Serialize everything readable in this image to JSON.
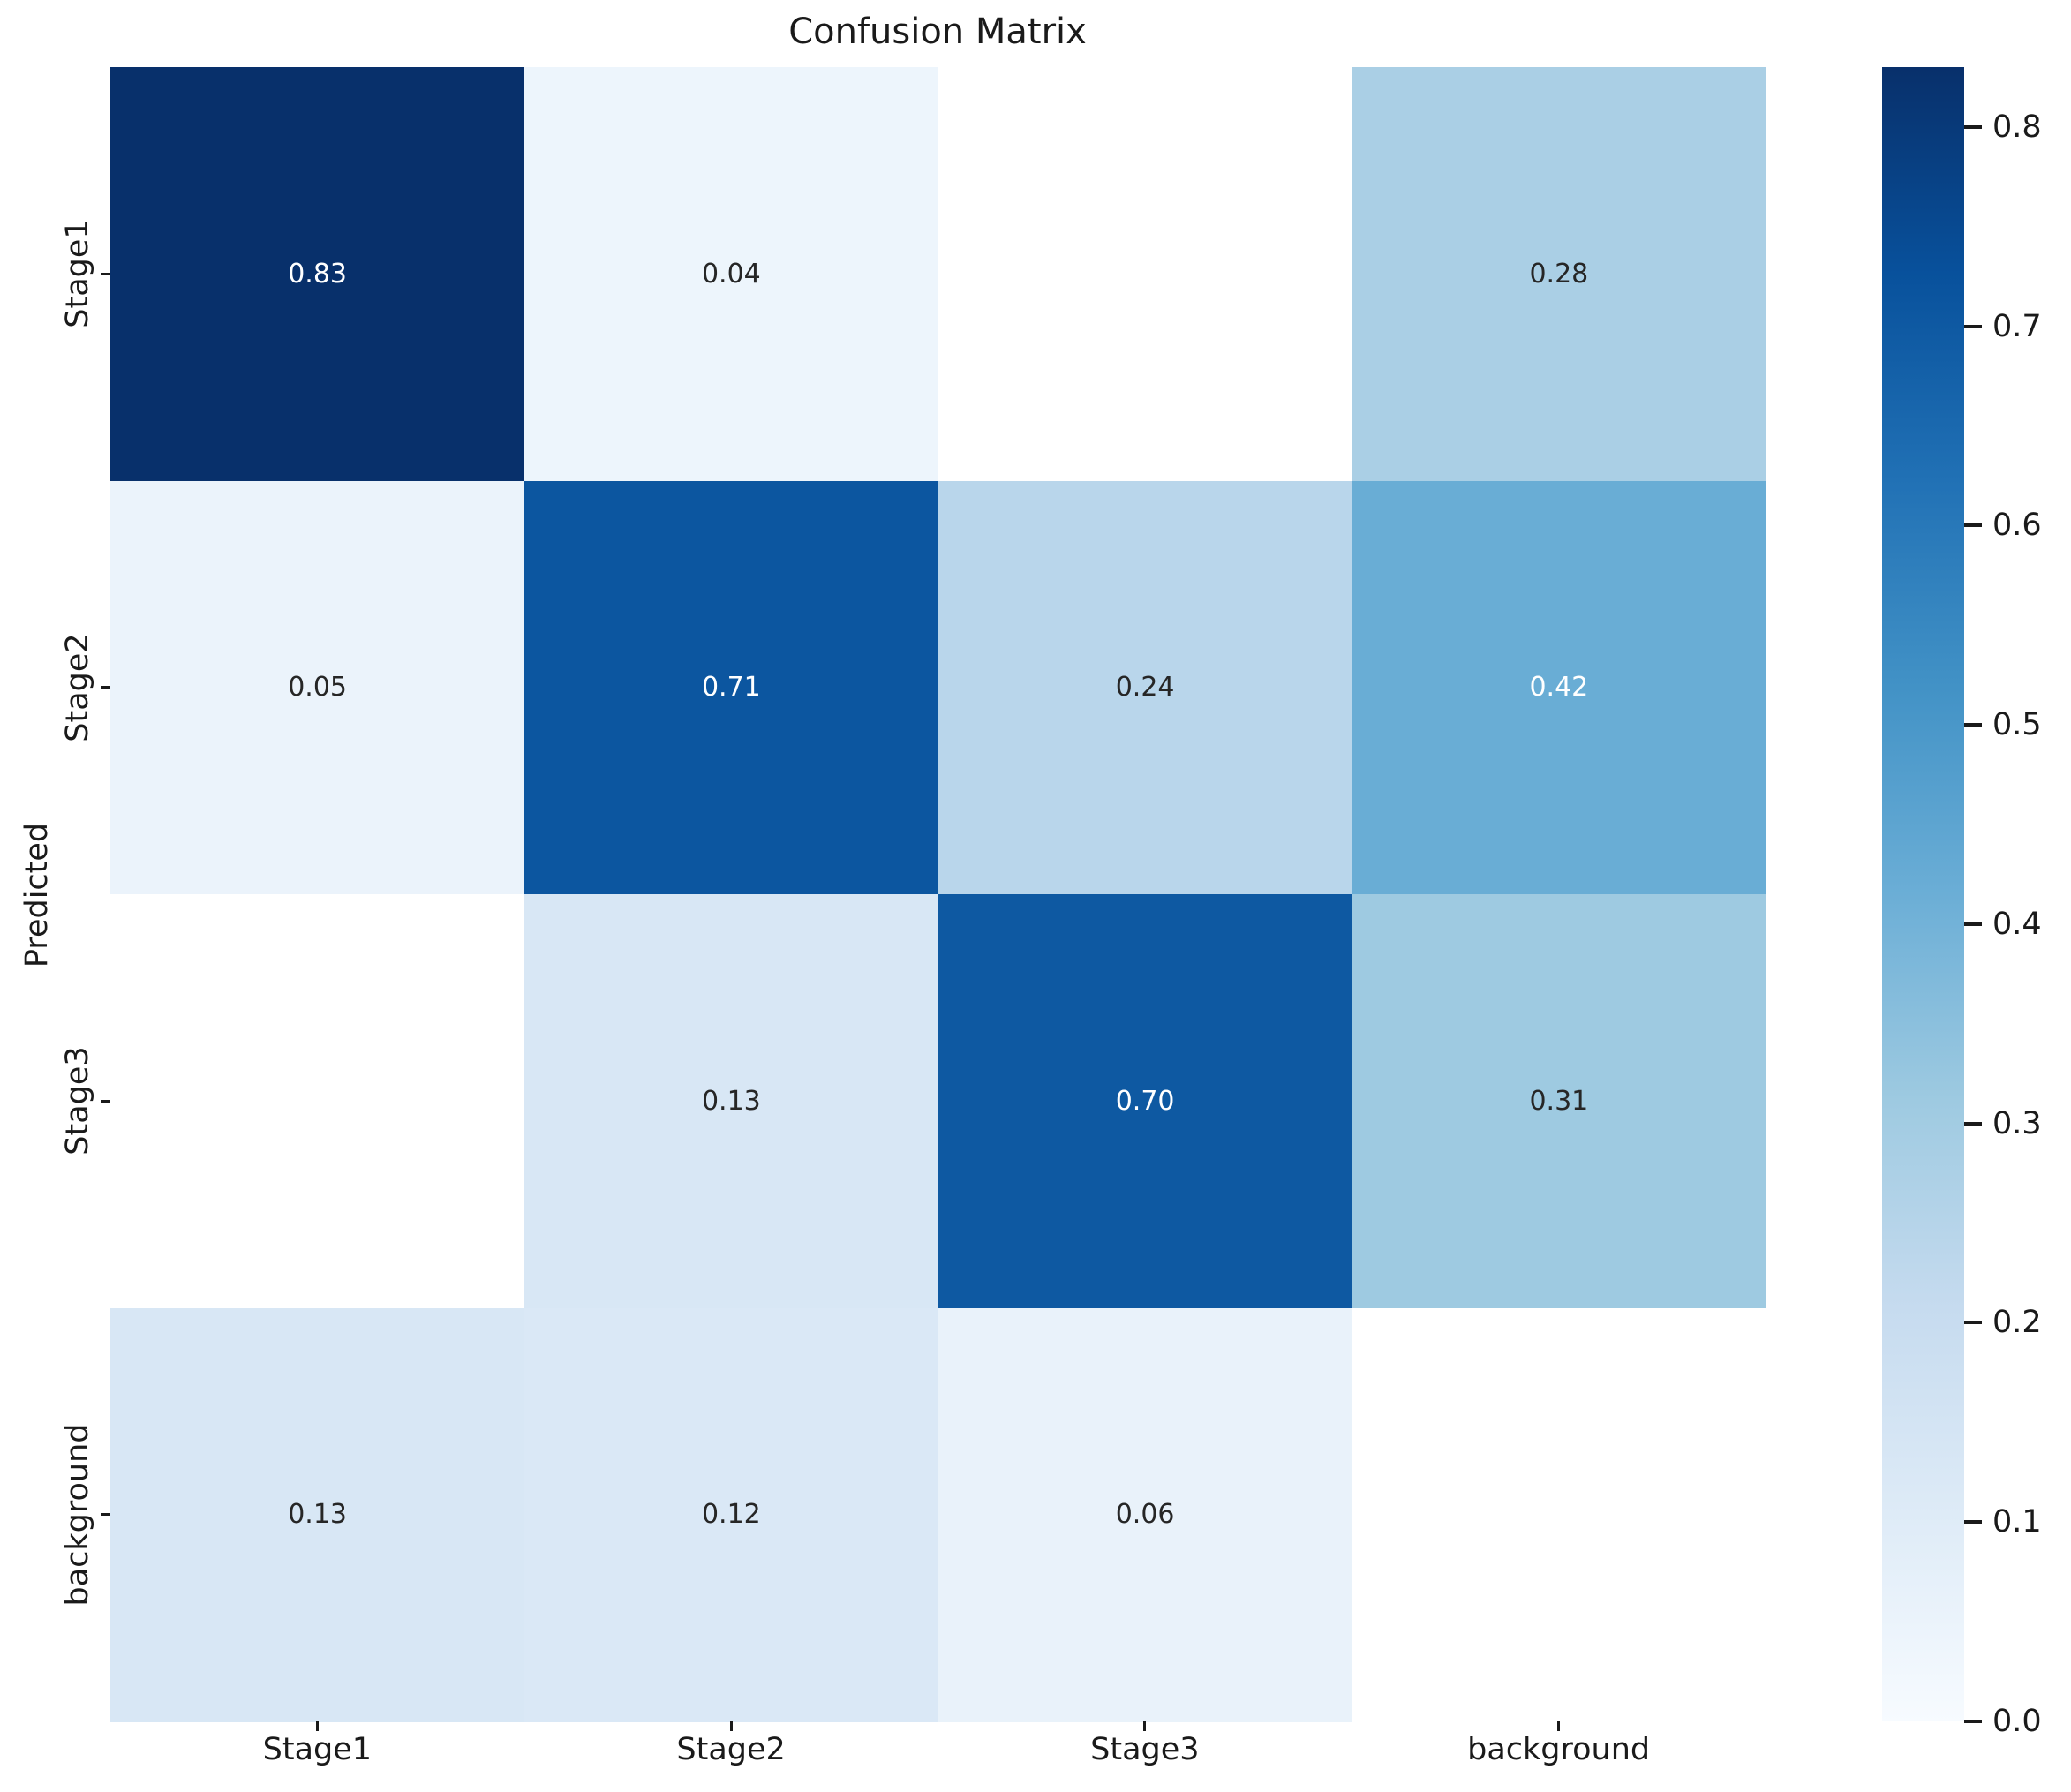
{
  "figure": {
    "background_color": "#ffffff"
  },
  "chart_data": {
    "type": "heatmap",
    "title": "Confusion Matrix",
    "xlabel": "",
    "ylabel": "Predicted",
    "x_categories": [
      "Stage1",
      "Stage2",
      "Stage3",
      "background"
    ],
    "y_categories": [
      "Stage1",
      "Stage2",
      "Stage3",
      "background"
    ],
    "matrix": [
      [
        0.83,
        0.04,
        null,
        0.28
      ],
      [
        0.05,
        0.71,
        0.24,
        0.42
      ],
      [
        null,
        0.13,
        0.7,
        0.31
      ],
      [
        0.13,
        0.12,
        0.06,
        null
      ]
    ],
    "value_decimals": 2,
    "empty_cell_color": "#ffffff",
    "grid": false,
    "colormap": {
      "name": "Blues",
      "stops": [
        {
          "pos": 0.0,
          "color": "#f7fbff"
        },
        {
          "pos": 0.125,
          "color": "#deebf7"
        },
        {
          "pos": 0.25,
          "color": "#c6dbef"
        },
        {
          "pos": 0.375,
          "color": "#9ecae1"
        },
        {
          "pos": 0.5,
          "color": "#6baed6"
        },
        {
          "pos": 0.625,
          "color": "#4292c6"
        },
        {
          "pos": 0.75,
          "color": "#2171b5"
        },
        {
          "pos": 0.875,
          "color": "#08519c"
        },
        {
          "pos": 1.0,
          "color": "#08306b"
        }
      ]
    },
    "scale": {
      "vmin": 0.0,
      "vmax": 0.83
    },
    "annotation_text_dark": "#262626",
    "annotation_text_light": "#ffffff",
    "axis_text_color": "#1a1a1a",
    "colorbar": {
      "position": "right",
      "ticks": [
        0.0,
        0.1,
        0.2,
        0.3,
        0.4,
        0.5,
        0.6,
        0.7,
        0.8
      ],
      "tick_decimals": 1
    }
  }
}
